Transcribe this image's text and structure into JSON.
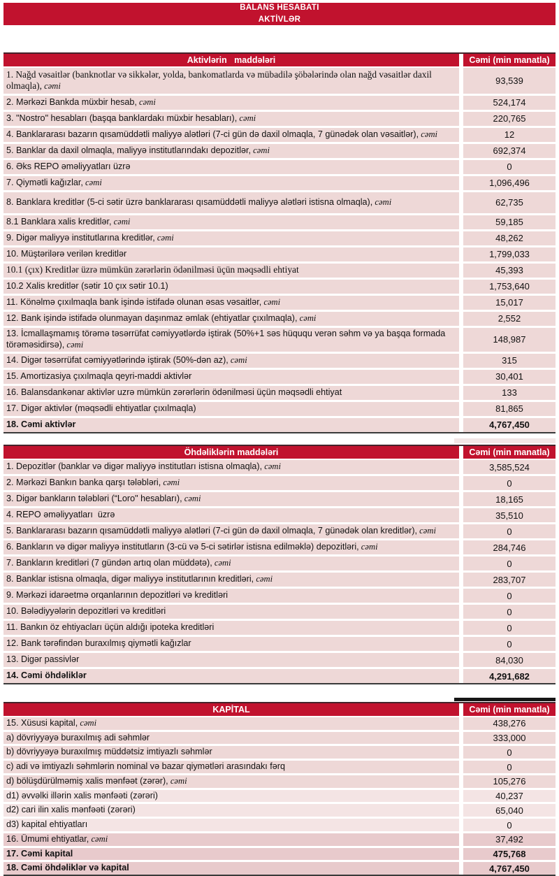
{
  "title": {
    "line1": "BALANS HESABATI",
    "line2": "AKTİVLƏR"
  },
  "colors": {
    "header_red": "#C1122E",
    "row_pink": "#EED8D7",
    "row_pink_light": "#F4E4E4",
    "row_pink_dark": "#E8CACC",
    "border_dark": "#3A3A3A",
    "text": "#111111"
  },
  "tables": [
    {
      "name": "aktivler",
      "header": {
        "title": "Aktivlərin   maddələri",
        "value_label": "Cəmi (min manatla)"
      },
      "rows": [
        {
          "label": "1. Nağd vəsaitlər (banknotlar və sikkələr, yolda, bankomatlarda və mübadilə şöbələrində olan nağd vəsaitlər daxil olmaqla),",
          "suffix": "cəmi",
          "value": "93,539",
          "serif": true
        },
        {
          "label": "2. Mərkəzi Bankda müxbir hesab,",
          "suffix": "cəmi",
          "value": "524,174"
        },
        {
          "label": "3. \"Nostro\" hesabları (başqa banklardakı müxbir hesabları),",
          "suffix": "cəmi",
          "value": "220,765"
        },
        {
          "label": "4. Banklararası bazarın qısamüddətli maliyyə alətləri (7-ci gün də daxil olmaqla, 7 günədək olan vəsaitlər),",
          "suffix": "cəmi",
          "value": "12"
        },
        {
          "label": "5. Banklar da daxil olmaqla, maliyyə institutlarındakı depozitlər,",
          "suffix": "cəmi",
          "value": "692,374"
        },
        {
          "label": "6. Əks REPO əməliyyatları üzrə",
          "suffix": "",
          "value": "0"
        },
        {
          "label": "7. Qiymətli kağızlar,",
          "suffix": "cəmi",
          "value": "1,096,496"
        },
        {
          "label": "8. Banklara kreditlər (5-ci sətir üzrə banklararası qısamüddətli maliyyə alətləri istisna olmaqla),",
          "suffix": "cəmi",
          "value": "62,735",
          "tall": true
        },
        {
          "label": "8.1 Banklara xalis kreditlər,",
          "suffix": "cəmi",
          "value": "59,185"
        },
        {
          "label": "9. Digər maliyyə institutlarına kreditlər,",
          "suffix": "cəmi",
          "value": "48,262"
        },
        {
          "label": "10. Müştərilərə verilən kreditlər",
          "suffix": "",
          "value": "1,799,033"
        },
        {
          "label": "10.1 (çıx) Kreditlər üzrə mümkün zərərlərin ödənilməsi üçün məqsədli ehtiyat",
          "suffix": "",
          "value": "45,393",
          "serif": true
        },
        {
          "label": "10.2 Xalis kreditlər (sətir 10 çıx sətir 10.1)",
          "suffix": "",
          "value": "1,753,640"
        },
        {
          "label": "11. Könəlmə çıxılmaqla bank işində istifadə olunan əsas vəsaitlər,",
          "suffix": "cəmi",
          "value": "15,017"
        },
        {
          "label": "12. Bank işində istifadə olunmayan daşınmaz əmlak (ehtiyatlar çıxılmaqla),",
          "suffix": "cəmi",
          "value": "2,552"
        },
        {
          "label": "13. İcmallaşmamış törəmə təsərrüfat cəmiyyətlərdə iştirak (50%+1 səs hüququ verən səhm və ya başqa formada törəməsidirsə),",
          "suffix": "cəmi",
          "value": "148,987"
        },
        {
          "label": "14. Digər təsərrüfat cəmiyyətlərində iştirak (50%-dən az),",
          "suffix": "cəmi",
          "value": "315"
        },
        {
          "label": "15. Amortizasiya çıxılmaqla qeyri-maddi aktivlər",
          "suffix": "",
          "value": "30,401"
        },
        {
          "label": "16. Balansdankənar aktivlər uzrə mümkün zərərlərin ödənilməsi üçün məqsədli ehtiyat",
          "suffix": "",
          "value": "133"
        },
        {
          "label": "17. Digər aktivlər (məqsədli ehtiyatlar çıxılmaqla)",
          "suffix": "",
          "value": "81,865"
        },
        {
          "label": "18. Cəmi aktivlər",
          "suffix": "",
          "value": "4,767,450",
          "bold": true
        }
      ]
    },
    {
      "name": "ohdelikler",
      "header": {
        "title": "Öhdəliklərin maddələri",
        "value_label": "Cəmi (min manatla)"
      },
      "rows": [
        {
          "label": "1. Depozitlər (banklar və digər maliyyə institutları istisna olmaqla),",
          "suffix": "cəmi",
          "value": "3,585,524"
        },
        {
          "label": "2. Mərkəzi Bankın banka qarşı tələbləri,",
          "suffix": "cəmi",
          "value": "0"
        },
        {
          "label": "3. Digər bankların tələbləri (“Loro\" hesabları),",
          "suffix": "cəmi",
          "value": "18,165"
        },
        {
          "label": "4. REPO əməliyyatları  üzrə",
          "suffix": "",
          "value": "35,510"
        },
        {
          "label": "5. Banklararası bazarın qısamüddətli maliyyə alətləri (7-ci gün də daxil olmaqla, 7 günədək olan kreditlər),",
          "suffix": "cəmi",
          "value": "0"
        },
        {
          "label": "6. Bankların və digər maliyyə institutların (3-cü və 5-ci sətirlər istisna edilməklə) depozitləri,",
          "suffix": "cəmi",
          "value": "284,746"
        },
        {
          "label": "7. Bankların kreditləri (7 gündən artıq olan müddətə),",
          "suffix": "cəmi",
          "value": "0"
        },
        {
          "label": "8. Banklar istisna olmaqla, digər maliyyə institutlarının kreditləri,",
          "suffix": "cəmi",
          "value": "283,707"
        },
        {
          "label": "9. Mərkəzi idarəetmə orqanlarının depozitləri və kreditləri",
          "suffix": "",
          "value": "0"
        },
        {
          "label": "10. Bələdiyyələrin depozitləri və kreditləri",
          "suffix": "",
          "value": "0"
        },
        {
          "label": "11. Bankın öz ehtiyacları üçün aldığı ipoteka kreditləri",
          "suffix": "",
          "value": "0"
        },
        {
          "label": "12. Bank tərəfindən buraxılmış qiymətli kağızlar",
          "suffix": "",
          "value": "0"
        },
        {
          "label": "13. Digər passivlər",
          "suffix": "",
          "value": "84,030"
        },
        {
          "label": "14. Cəmi öhdəliklər",
          "suffix": "",
          "value": "4,291,682",
          "bold": true
        }
      ]
    },
    {
      "name": "kapital",
      "header": {
        "title": "KAPİTAL",
        "value_label": "Cəmi (min manatla)"
      },
      "rows": [
        {
          "label": "15. Xüsusi kapital,",
          "suffix": "cəmi",
          "value": "438,276"
        },
        {
          "label": "a) dövriyyəyə buraxılmış adi səhmlər",
          "suffix": "",
          "value": "333,000"
        },
        {
          "label": "b) dövriyyəyə buraxılmış müddətsiz imtiyazlı səhmlər",
          "suffix": "",
          "value": "0"
        },
        {
          "label": "c) adi və imtiyazlı səhmlərin nominal və bazar qiymətləri arasındakı fərq",
          "suffix": "",
          "value": "0"
        },
        {
          "label": "d) bölüşdürülməmiş xalis mənfəət (zərər),",
          "suffix": "cəmi",
          "value": "105,276"
        },
        {
          "label": "d1) əvvəlki illərin xalis mənfəəti (zərəri)",
          "suffix": "",
          "value": "40,237",
          "shade": "light"
        },
        {
          "label": "d2) cari ilin xalis mənfəəti (zərəri)",
          "suffix": "",
          "value": "65,040",
          "shade": "light"
        },
        {
          "label": "d3) kapital ehtiyatları",
          "suffix": "",
          "value": "0",
          "shade": "light"
        },
        {
          "label": "16. Ümumi ehtiyatlar,",
          "suffix": "cəmi",
          "value": "37,492",
          "shade": "dark"
        },
        {
          "label": "17. Cəmi kapital",
          "suffix": "",
          "value": "475,768",
          "bold": true,
          "shade": "dark"
        },
        {
          "label": "18. Cəmi öhdəliklər və kapital",
          "suffix": "",
          "value": "4,767,450",
          "bold": true,
          "shade": "dark"
        }
      ]
    }
  ]
}
